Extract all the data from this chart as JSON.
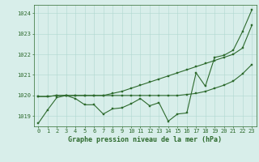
{
  "title": "Graphe pression niveau de la mer (hPa)",
  "x_labels": [
    0,
    1,
    2,
    3,
    4,
    5,
    6,
    7,
    8,
    9,
    10,
    11,
    12,
    13,
    14,
    15,
    16,
    17,
    18,
    19,
    20,
    21,
    22,
    23
  ],
  "ylim": [
    1018.5,
    1024.4
  ],
  "yticks": [
    1019,
    1020,
    1021,
    1022,
    1023,
    1024
  ],
  "y_main": [
    1018.65,
    1019.3,
    1019.9,
    1020.0,
    1019.85,
    1019.55,
    1019.55,
    1019.1,
    1019.35,
    1019.4,
    1019.6,
    1019.85,
    1019.5,
    1019.65,
    1018.75,
    1019.1,
    1019.15,
    1021.1,
    1020.45,
    1021.85,
    1021.95,
    1022.2,
    1023.1,
    1024.15
  ],
  "y_upper": [
    1019.95,
    1019.95,
    1020.0,
    1020.0,
    1020.0,
    1020.0,
    1020.0,
    1020.0,
    1020.1,
    1020.2,
    1020.35,
    1020.5,
    1020.65,
    1020.8,
    1020.95,
    1021.1,
    1021.25,
    1021.4,
    1021.55,
    1021.7,
    1021.85,
    1022.0,
    1022.3,
    1023.4
  ],
  "y_mid": [
    1019.95,
    1019.95,
    1020.0,
    1020.0,
    1020.0,
    1020.0,
    1020.0,
    1020.0,
    1020.0,
    1020.0,
    1020.0,
    1020.0,
    1020.0,
    1020.0,
    1020.0,
    1020.0,
    1020.05,
    1020.1,
    1020.2,
    1020.35,
    1020.5,
    1020.7,
    1021.05,
    1021.5
  ],
  "line_color": "#2d6a2d",
  "bg_color": "#d8eeea",
  "grid_color": "#b0d8d0",
  "title_color": "#2d6a2d",
  "title_fontsize": 6.0,
  "tick_fontsize": 5.0,
  "marker_size": 1.8,
  "line_width": 0.8
}
